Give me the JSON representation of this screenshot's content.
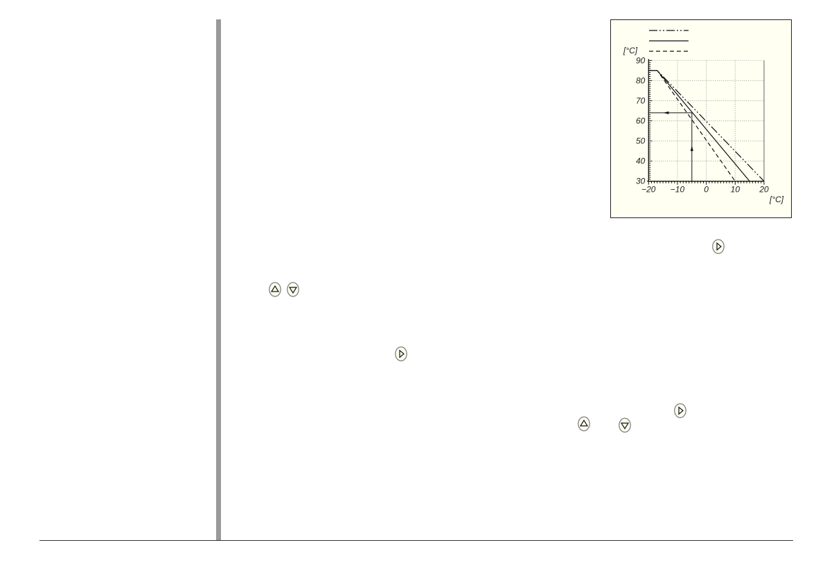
{
  "chart_data": {
    "type": "line",
    "title": "",
    "xlabel": "[°C]",
    "ylabel": "[°C]",
    "xlim": [
      -20,
      20
    ],
    "ylim": [
      30,
      90
    ],
    "xticks": [
      "−20",
      "−10",
      "0",
      "10",
      "20"
    ],
    "yticks": [
      "30",
      "40",
      "50",
      "60",
      "70",
      "80",
      "90"
    ],
    "grid": true,
    "legend": "top",
    "series": [
      {
        "style": "dash-dot",
        "points": [
          [
            -20,
            85
          ],
          [
            -17,
            85
          ],
          [
            20,
            30
          ]
        ]
      },
      {
        "style": "solid",
        "points": [
          [
            -20,
            85
          ],
          [
            -17,
            85
          ],
          [
            15,
            30
          ]
        ]
      },
      {
        "style": "dashed",
        "points": [
          [
            -20,
            85
          ],
          [
            -17,
            85
          ],
          [
            10,
            30
          ]
        ]
      }
    ],
    "annotation": {
      "x": -5,
      "y": 64,
      "description_shown": "arrow from x axis up to solid curve, then left to y axis"
    }
  },
  "keys": [
    {
      "icon": "right-arrow-key"
    },
    {
      "icon": "up-arrow-key"
    },
    {
      "icon": "down-arrow-key"
    },
    {
      "icon": "right-arrow-key"
    },
    {
      "icon": "right-arrow-key"
    },
    {
      "icon": "up-arrow-key"
    },
    {
      "icon": "down-arrow-key"
    }
  ],
  "colors": {
    "chart_background": "#fffff2",
    "key_fill": "#fffff0",
    "side_bar": "#999999"
  }
}
